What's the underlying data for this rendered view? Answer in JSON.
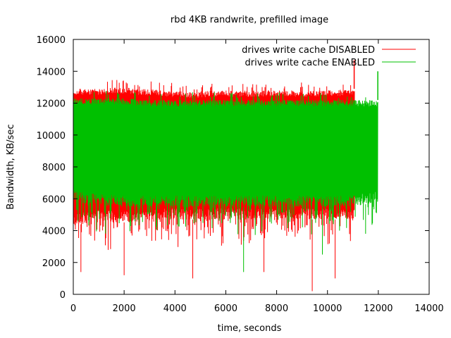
{
  "chart_data": {
    "type": "line",
    "title": "rbd 4KB randwrite, prefilled image",
    "xlabel": "time, seconds",
    "ylabel": "Bandwidth, KB/sec",
    "xlim": [
      0,
      14000
    ],
    "ylim": [
      0,
      16000
    ],
    "xticks": [
      0,
      2000,
      4000,
      6000,
      8000,
      10000,
      12000,
      14000
    ],
    "yticks": [
      0,
      2000,
      4000,
      6000,
      8000,
      10000,
      12000,
      14000,
      16000
    ],
    "grid": false,
    "legend_position": "top-right",
    "series": [
      {
        "name": "drives write cache DISABLED",
        "color": "#ff0000",
        "x_start": 0,
        "x_end": 11060,
        "band_upper": [
          12900,
          12900,
          13000,
          12900,
          12800,
          12700,
          12800,
          12800,
          12800,
          12800,
          12800,
          12800,
          12900
        ],
        "band_lower": [
          4300,
          4600,
          4500,
          4600,
          4700,
          4700,
          4700,
          4700,
          4700,
          4700,
          4700,
          4700,
          4700
        ],
        "spike_up": [
          [
            11050,
            14700
          ]
        ],
        "dips": [
          [
            2500,
            8700
          ],
          [
            4300,
            10400
          ],
          [
            9400,
            200
          ],
          [
            300,
            1400
          ],
          [
            2000,
            1200
          ],
          [
            4700,
            1000
          ],
          [
            7500,
            1400
          ],
          [
            10300,
            1000
          ]
        ]
      },
      {
        "name": "drives write cache ENABLED",
        "color": "#00c000",
        "x_start": 0,
        "x_end": 11980,
        "band_upper": [
          12300,
          12300,
          12300,
          12200,
          12200,
          12200,
          12200,
          12200,
          12200,
          12200,
          12200,
          12200,
          12200
        ],
        "band_lower": [
          5800,
          5600,
          5500,
          5500,
          5500,
          5500,
          5500,
          5500,
          5500,
          5500,
          5500,
          5500,
          5800
        ],
        "spike_up": [
          [
            11980,
            14000
          ]
        ],
        "dips": [
          [
            6700,
            1400
          ],
          [
            9800,
            2500
          ],
          [
            11500,
            3800
          ]
        ]
      }
    ]
  }
}
